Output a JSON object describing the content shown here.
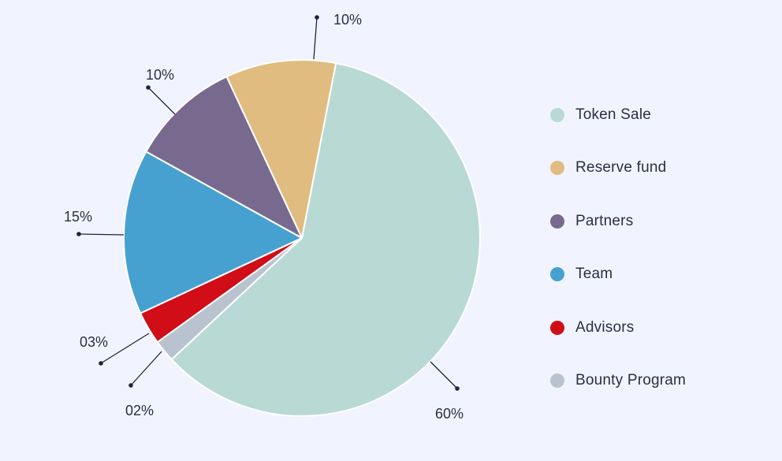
{
  "chart_data": {
    "type": "pie",
    "slices": [
      {
        "name": "Token Sale",
        "value": 60,
        "label": "60%",
        "color": "#B9DAD4"
      },
      {
        "name": "Bounty Program",
        "value": 2,
        "label": "02%",
        "color": "#B9C3D0"
      },
      {
        "name": "Advisors",
        "value": 3,
        "label": "03%",
        "color": "#D10D17"
      },
      {
        "name": "Team",
        "value": 15,
        "label": "15%",
        "color": "#47A1D0"
      },
      {
        "name": "Partners",
        "value": 10,
        "label": "10%",
        "color": "#786A8E"
      },
      {
        "name": "Reserve fund",
        "value": 10,
        "label": "10%",
        "color": "#E0BC80"
      }
    ],
    "legend": {
      "placement": "right",
      "items": [
        {
          "label": "Token Sale",
          "color": "#B9DAD4"
        },
        {
          "label": "Reserve fund",
          "color": "#E0BC80"
        },
        {
          "label": "Partners",
          "color": "#786A8E"
        },
        {
          "label": "Team",
          "color": "#47A1D0"
        },
        {
          "label": "Advisors",
          "color": "#D10D17"
        },
        {
          "label": "Bounty Program",
          "color": "#B9C3D0"
        }
      ]
    }
  },
  "colors": {
    "background": "#F1F4FE",
    "text": "#2A2E45",
    "leader_line": "#1F2340"
  }
}
